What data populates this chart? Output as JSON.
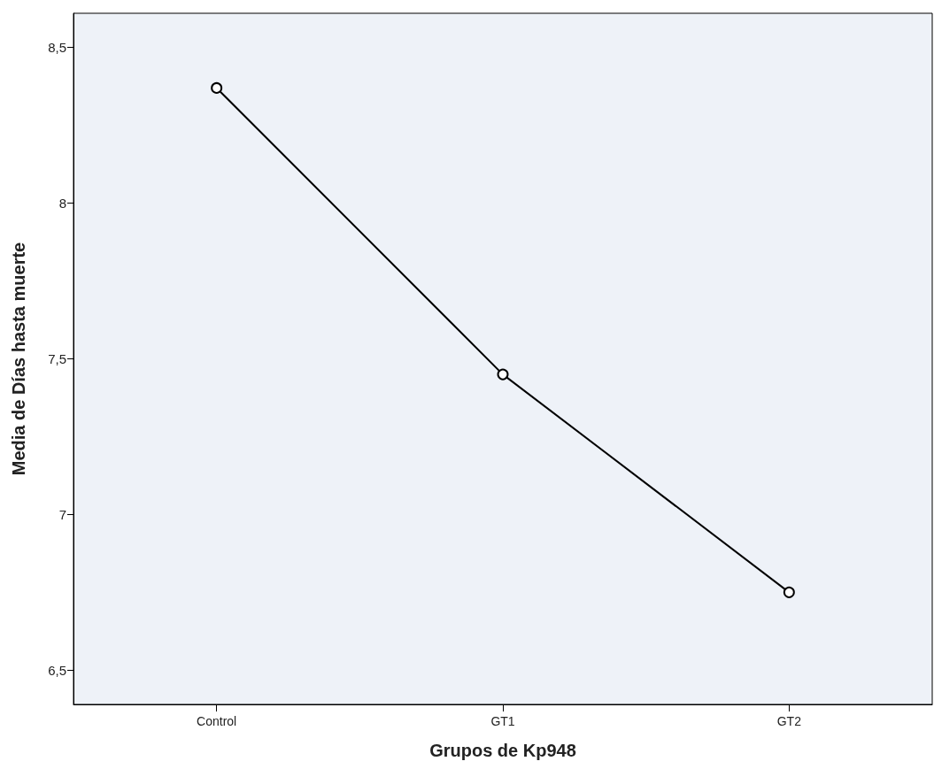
{
  "chart_data": {
    "type": "line",
    "xlabel": "Grupos de Kp948",
    "ylabel": "Media de Días hasta muerte",
    "categories": [
      "Control",
      "GT1",
      "GT2"
    ],
    "series": [
      {
        "color": "#000000",
        "values": [
          8.37,
          7.45,
          6.75
        ]
      }
    ],
    "ylim": [
      6.39,
      8.61
    ],
    "yticks": [
      {
        "value": 6.5,
        "label": "6,5"
      },
      7,
      {
        "value": 7.5,
        "label": "7,5"
      },
      8,
      {
        "value": 8.5,
        "label": "8,5"
      }
    ],
    "grid": false,
    "marker": "circle",
    "line_style": "solid"
  }
}
